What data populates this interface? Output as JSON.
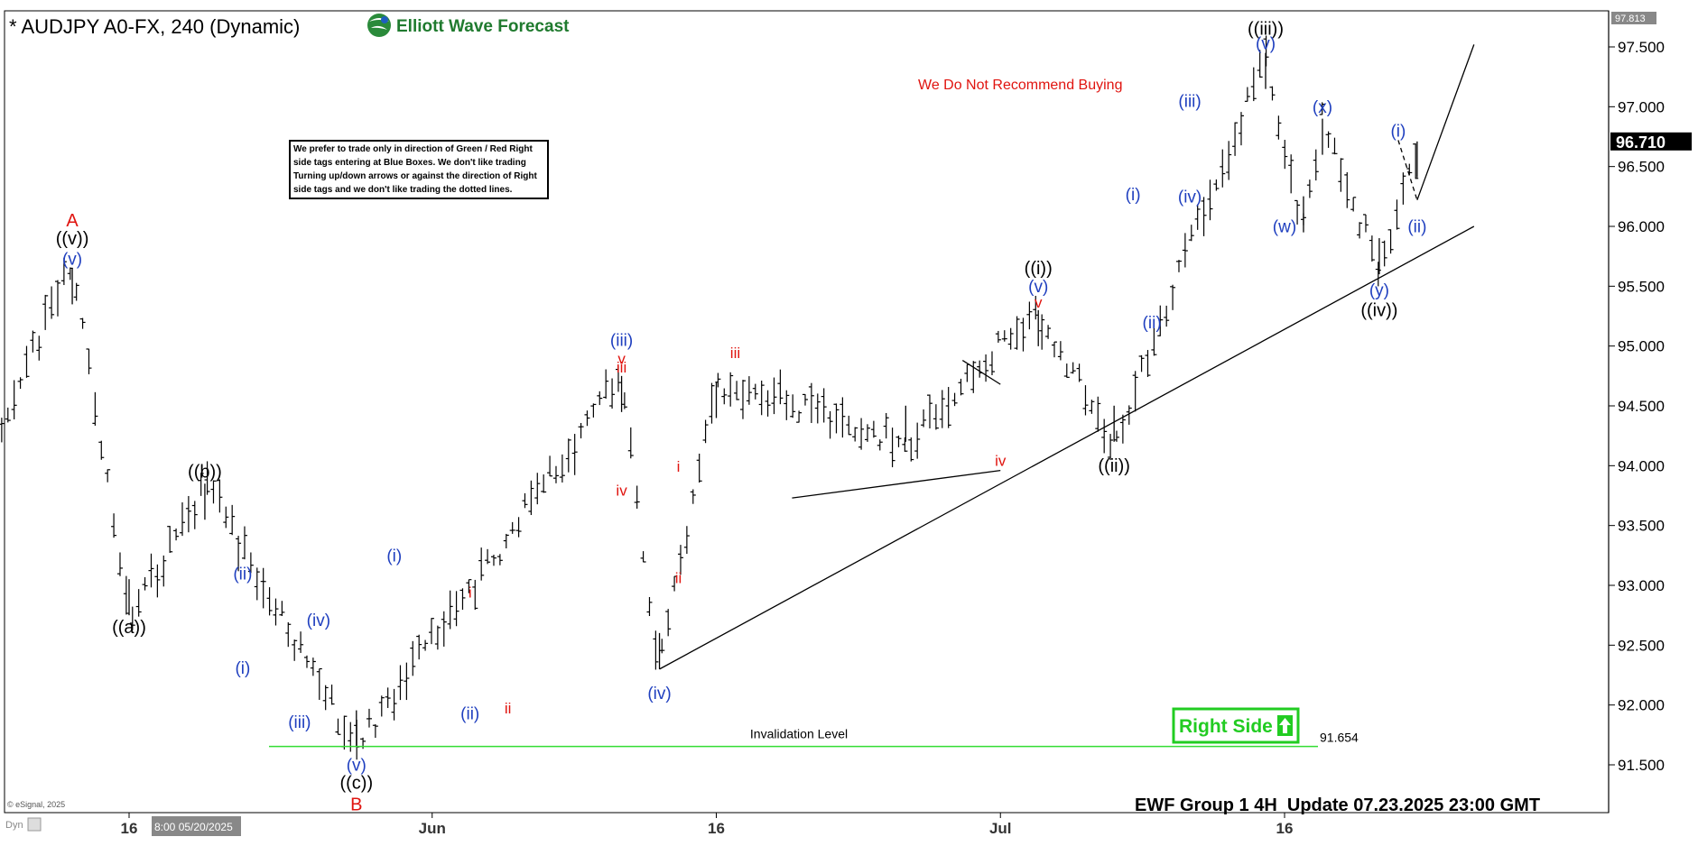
{
  "header": {
    "symbol_title": "* AUDJPY A0-FX, 240 (Dynamic)",
    "brand": "Elliott Wave Forecast",
    "brand_logo_icon": "ewf-globe-logo-icon"
  },
  "notes": {
    "disclaimer": "We prefer to trade only in direction of Green / Red Right side tags entering at Blue Boxes. We don't like trading Turning up/down arrows or against the direction of Right side tags and we don't like trading the dotted lines.",
    "warning": "We Do Not Recommend Buying",
    "invalidation_label": "Invalidation Level",
    "invalidation_value": "91.654",
    "right_side_tag": "Right Side",
    "right_side_icon": "up-arrow-icon",
    "footer": "EWF Group 1 4H  Update 07.23.2025 23:00 GMT",
    "copyright": "© eSignal, 2025",
    "dyn_label": "Dyn",
    "time_cursor_label": "8:00 05/20/2025"
  },
  "colors": {
    "bars": "#000000",
    "blue_labels": "#1f3fbf",
    "red_labels": "#e0140f",
    "black_labels": "#000000",
    "invalidation_line": "#33dd33",
    "right_side_green": "#22cc22",
    "warning_red": "#e0140f"
  },
  "chart_data": {
    "type": "ohlc",
    "symbol": "AUDJPY",
    "timeframe": "4H",
    "ylim": [
      91.3,
      97.85
    ],
    "y_ticks": [
      "97.500",
      "97.000",
      "96.500",
      "96.000",
      "95.500",
      "95.000",
      "94.500",
      "94.000",
      "93.500",
      "93.000",
      "92.500",
      "92.000",
      "91.500"
    ],
    "y_top_label": "97.813",
    "last_price": "96.710",
    "x_ticks": [
      "16",
      "Jun",
      "16",
      "Jul",
      "16"
    ],
    "key_points": [
      {
        "date": "2025-05-05",
        "price": 92.9
      },
      {
        "date": "2025-05-13",
        "price": 95.65
      },
      {
        "date": "2025-05-16",
        "price": 92.75
      },
      {
        "date": "2025-05-20",
        "price": 93.85
      },
      {
        "date": "2025-05-28",
        "price": 91.654
      },
      {
        "date": "2025-06-11",
        "price": 94.75
      },
      {
        "date": "2025-06-13",
        "price": 92.3
      },
      {
        "date": "2025-06-16",
        "price": 94.7
      },
      {
        "date": "2025-06-26",
        "price": 94.2
      },
      {
        "date": "2025-07-03",
        "price": 95.3
      },
      {
        "date": "2025-07-07",
        "price": 94.2
      },
      {
        "date": "2025-07-15",
        "price": 97.45
      },
      {
        "date": "2025-07-17",
        "price": 95.95
      },
      {
        "date": "2025-07-18",
        "price": 96.9
      },
      {
        "date": "2025-07-21",
        "price": 95.6
      },
      {
        "date": "2025-07-23",
        "price": 96.71
      }
    ],
    "wave_labels": [
      {
        "text": "A",
        "color": "red",
        "date": "2025-05-13",
        "price": 96.0,
        "size": 20
      },
      {
        "text": "((v))",
        "color": "black",
        "date": "2025-05-13",
        "price": 95.85,
        "size": 20
      },
      {
        "text": "(v)",
        "color": "blue",
        "date": "2025-05-13",
        "price": 95.68,
        "size": 19
      },
      {
        "text": "((b))",
        "color": "black",
        "date": "2025-05-20",
        "price": 93.9,
        "size": 20
      },
      {
        "text": "((a))",
        "color": "black",
        "date": "2025-05-16",
        "price": 92.6,
        "size": 20
      },
      {
        "text": "(ii)",
        "color": "blue",
        "date": "2025-05-22",
        "price": 93.05,
        "size": 19
      },
      {
        "text": "(i)",
        "color": "blue",
        "date": "2025-05-22",
        "price": 92.26,
        "size": 19
      },
      {
        "text": "(iv)",
        "color": "blue",
        "date": "2025-05-26",
        "price": 92.66,
        "size": 19
      },
      {
        "text": "(iii)",
        "color": "blue",
        "date": "2025-05-25",
        "price": 91.81,
        "size": 19
      },
      {
        "text": "(v)",
        "color": "blue",
        "date": "2025-05-28",
        "price": 91.45,
        "size": 19
      },
      {
        "text": "((c))",
        "color": "black",
        "date": "2025-05-28",
        "price": 91.3,
        "size": 20
      },
      {
        "text": "B",
        "color": "red",
        "date": "2025-05-28",
        "price": 91.12,
        "size": 20
      },
      {
        "text": "(i)",
        "color": "blue",
        "date": "2025-05-30",
        "price": 93.2,
        "size": 19
      },
      {
        "text": "(ii)",
        "color": "blue",
        "date": "2025-06-03",
        "price": 91.88,
        "size": 19
      },
      {
        "text": "i",
        "color": "red",
        "date": "2025-06-03",
        "price": 92.9,
        "size": 17
      },
      {
        "text": "ii",
        "color": "red",
        "date": "2025-06-05",
        "price": 91.93,
        "size": 17
      },
      {
        "text": "iii",
        "color": "red",
        "date": "2025-06-11",
        "price": 94.78,
        "size": 17
      },
      {
        "text": "(iii)",
        "color": "blue",
        "date": "2025-06-11",
        "price": 95.0,
        "size": 19
      },
      {
        "text": "v",
        "color": "red",
        "date": "2025-06-11",
        "price": 94.85,
        "size": 17
      },
      {
        "text": "iv",
        "color": "red",
        "date": "2025-06-11",
        "price": 93.75,
        "size": 17
      },
      {
        "text": "(iv)",
        "color": "blue",
        "date": "2025-06-13",
        "price": 92.05,
        "size": 19
      },
      {
        "text": "i",
        "color": "red",
        "date": "2025-06-14",
        "price": 93.95,
        "size": 17
      },
      {
        "text": "ii",
        "color": "red",
        "date": "2025-06-14",
        "price": 93.02,
        "size": 17
      },
      {
        "text": "iii",
        "color": "red",
        "date": "2025-06-17",
        "price": 94.9,
        "size": 17
      },
      {
        "text": "iv",
        "color": "red",
        "date": "2025-07-01",
        "price": 94.0,
        "size": 17
      },
      {
        "text": "((i))",
        "color": "black",
        "date": "2025-07-03",
        "price": 95.6,
        "size": 20
      },
      {
        "text": "(v)",
        "color": "blue",
        "date": "2025-07-03",
        "price": 95.45,
        "size": 19
      },
      {
        "text": "v",
        "color": "red",
        "date": "2025-07-03",
        "price": 95.32,
        "size": 17
      },
      {
        "text": "((ii))",
        "color": "black",
        "date": "2025-07-07",
        "price": 93.95,
        "size": 20
      },
      {
        "text": "(i)",
        "color": "blue",
        "date": "2025-07-08",
        "price": 96.22,
        "size": 19
      },
      {
        "text": "(ii)",
        "color": "blue",
        "date": "2025-07-09",
        "price": 95.15,
        "size": 19
      },
      {
        "text": "(iii)",
        "color": "blue",
        "date": "2025-07-11",
        "price": 97.0,
        "size": 19
      },
      {
        "text": "(iv)",
        "color": "blue",
        "date": "2025-07-11",
        "price": 96.2,
        "size": 19
      },
      {
        "text": "((iii))",
        "color": "black",
        "date": "2025-07-15",
        "price": 97.6,
        "size": 20
      },
      {
        "text": "(v)",
        "color": "blue",
        "date": "2025-07-15",
        "price": 97.48,
        "size": 19
      },
      {
        "text": "(w)",
        "color": "blue",
        "date": "2025-07-16",
        "price": 95.95,
        "size": 19
      },
      {
        "text": "(x)",
        "color": "blue",
        "date": "2025-07-18",
        "price": 96.95,
        "size": 19
      },
      {
        "text": "(y)",
        "color": "blue",
        "date": "2025-07-21",
        "price": 95.42,
        "size": 19
      },
      {
        "text": "((iv))",
        "color": "black",
        "date": "2025-07-21",
        "price": 95.25,
        "size": 20
      },
      {
        "text": "(i)",
        "color": "blue",
        "date": "2025-07-22",
        "price": 96.75,
        "size": 19
      },
      {
        "text": "(ii)",
        "color": "blue",
        "date": "2025-07-23",
        "price": 95.95,
        "size": 19
      }
    ],
    "trendlines": [
      {
        "from": {
          "date": "2025-06-13",
          "price": 92.3
        },
        "to": {
          "date": "2025-07-26",
          "price": 96.0
        },
        "style": "solid"
      },
      {
        "from": {
          "date": "2025-06-20",
          "price": 93.73
        },
        "to": {
          "date": "2025-07-01",
          "price": 93.96
        },
        "style": "solid"
      },
      {
        "from": {
          "date": "2025-06-29",
          "price": 94.88
        },
        "to": {
          "date": "2025-07-01",
          "price": 94.68
        },
        "style": "solid"
      },
      {
        "from": {
          "date": "2025-07-22",
          "price": 96.72
        },
        "to": {
          "date": "2025-07-23",
          "price": 96.22
        },
        "style": "dashed"
      },
      {
        "from": {
          "date": "2025-07-23",
          "price": 96.22
        },
        "to": {
          "date": "2025-07-26",
          "price": 97.52
        },
        "style": "solid"
      }
    ],
    "invalidation_level": 91.654,
    "grid": false
  }
}
